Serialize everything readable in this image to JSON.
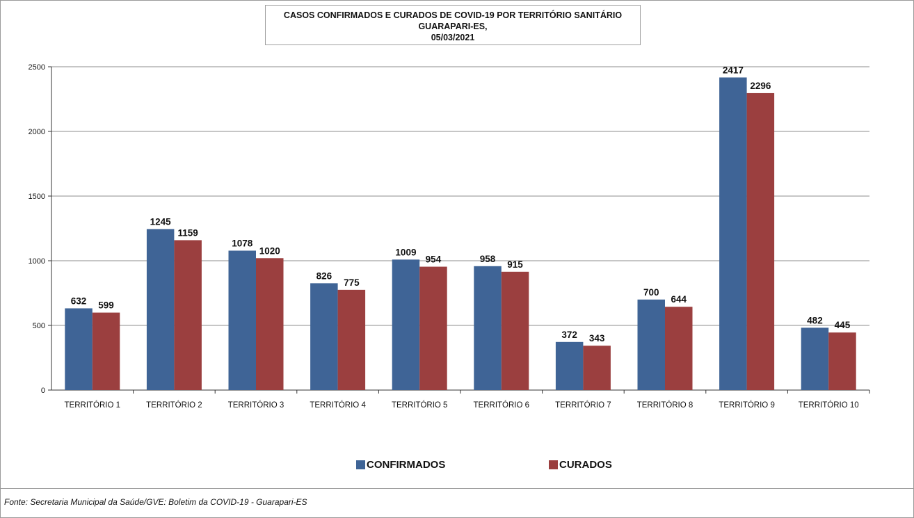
{
  "chart_data": {
    "type": "bar",
    "title_lines": [
      "CASOS CONFIRMADOS E CURADOS DE COVID-19 POR TERRITÓRIO SANITÁRIO",
      "GUARAPARI-ES,",
      "05/03/2021"
    ],
    "categories": [
      "TERRITÓRIO 1",
      "TERRITÓRIO 2",
      "TERRITÓRIO 3",
      "TERRITÓRIO 4",
      "TERRITÓRIO 5",
      "TERRITÓRIO 6",
      "TERRITÓRIO 7",
      "TERRITÓRIO 8",
      "TERRITÓRIO 9",
      "TERRITÓRIO 10"
    ],
    "series": [
      {
        "name": "CONFIRMADOS",
        "color": "#3f6496",
        "values": [
          632,
          1245,
          1078,
          826,
          1009,
          958,
          372,
          700,
          2417,
          482
        ]
      },
      {
        "name": "CURADOS",
        "color": "#9b3f3f",
        "values": [
          599,
          1159,
          1020,
          775,
          954,
          915,
          343,
          644,
          2296,
          445
        ]
      }
    ],
    "ylim": [
      0,
      2500
    ],
    "yticks": [
      0,
      500,
      1000,
      1500,
      2000,
      2500
    ],
    "grid": true,
    "legend_position": "bottom"
  },
  "source": "Fonte: Secretaria Municipal da Saúde/GVE: Boletim da COVID-19 - Guarapari-ES"
}
